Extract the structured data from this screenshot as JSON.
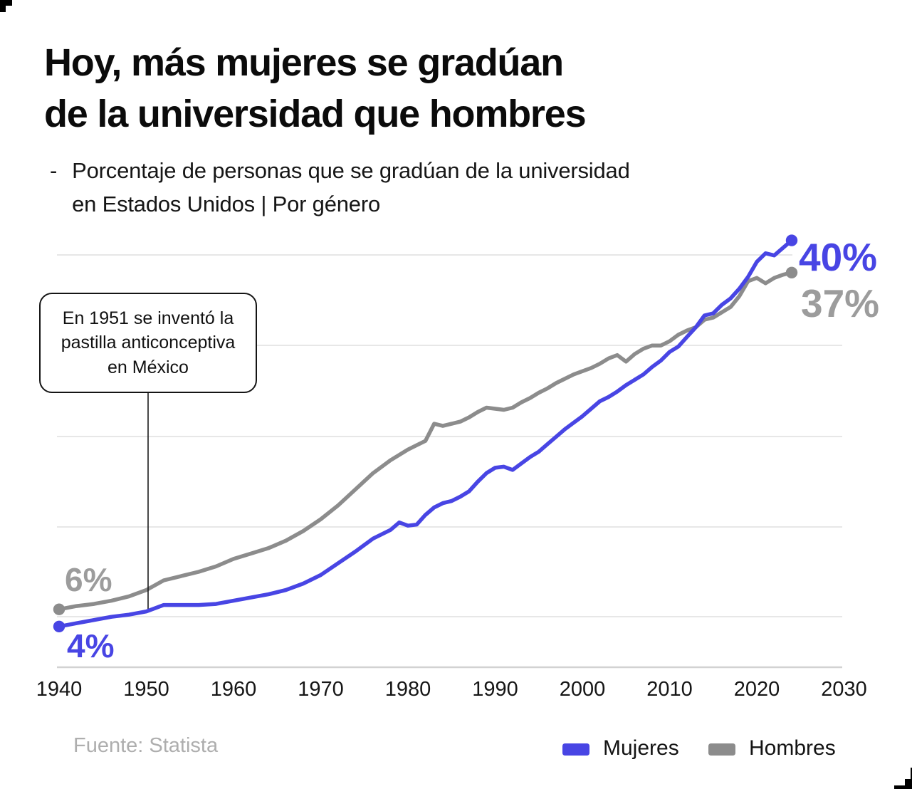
{
  "header": {
    "title_line1": "Hoy, más mujeres se gradúan",
    "title_line2": "de la universidad que hombres",
    "subtitle_dash": "-",
    "subtitle_line1": "Porcentaje de personas que se gradúan de la universidad",
    "subtitle_line2": "en Estados Unidos | Por género"
  },
  "annotation": {
    "line1": "En 1951 se inventó la",
    "line2": "pastilla anticonceptiva",
    "line3": "en México",
    "year": 1951
  },
  "value_labels": {
    "women_start": "4%",
    "men_start": "6%",
    "women_end": "40%",
    "men_end": "37%"
  },
  "footer": {
    "source": "Fuente: Statista",
    "legend": [
      {
        "label": "Mujeres",
        "color": "#4845e4"
      },
      {
        "label": "Hombres",
        "color": "#8c8c8c"
      }
    ]
  },
  "colors": {
    "women": "#4845e4",
    "men": "#8c8c8c",
    "men_label": "#9c9c9c",
    "grid": "#e7e7e7",
    "axis": "#d2d2d2",
    "annotation_line": "#1a1a1a",
    "source": "#aeaeae",
    "text": "#161616"
  },
  "chart_data": {
    "type": "line",
    "title": "Hoy, más mujeres se gradúan de la universidad que hombres",
    "subtitle": "Porcentaje de personas que se gradúan de la universidad en Estados Unidos | Por género",
    "x_ticks": [
      1940,
      1950,
      1960,
      1970,
      1980,
      1990,
      2000,
      2010,
      2020,
      2030
    ],
    "x_range": [
      1940,
      2030
    ],
    "y_range": [
      0,
      43
    ],
    "grid": "horizontal",
    "legend_position": "bottom-right",
    "annotation": {
      "text": "En 1951 se inventó la pastilla anticonceptiva en México",
      "x": 1951
    },
    "x": [
      1940,
      1942,
      1944,
      1946,
      1948,
      1950,
      1952,
      1954,
      1956,
      1958,
      1960,
      1962,
      1964,
      1966,
      1968,
      1970,
      1972,
      1974,
      1976,
      1978,
      1979,
      1980,
      1981,
      1982,
      1983,
      1984,
      1985,
      1986,
      1987,
      1988,
      1989,
      1990,
      1991,
      1992,
      1993,
      1994,
      1995,
      1996,
      1997,
      1998,
      1999,
      2000,
      2001,
      2002,
      2003,
      2004,
      2005,
      2006,
      2007,
      2008,
      2009,
      2010,
      2011,
      2012,
      2013,
      2014,
      2015,
      2016,
      2017,
      2018,
      2019,
      2020,
      2021,
      2022,
      2023,
      2024
    ],
    "series": [
      {
        "name": "Mujeres",
        "color": "#4845e4",
        "start_label": "4%",
        "end_label": "40%",
        "values": [
          4.0,
          4.3,
          4.6,
          4.9,
          5.1,
          5.4,
          6.0,
          6.0,
          6.0,
          6.1,
          6.4,
          6.7,
          7.0,
          7.4,
          8.0,
          8.8,
          9.9,
          11.0,
          12.2,
          13.0,
          13.7,
          13.4,
          13.5,
          14.4,
          15.1,
          15.5,
          15.7,
          16.1,
          16.6,
          17.5,
          18.3,
          18.8,
          18.9,
          18.6,
          19.2,
          19.8,
          20.3,
          21.0,
          21.7,
          22.4,
          23.0,
          23.6,
          24.3,
          25.0,
          25.4,
          25.9,
          26.5,
          27.0,
          27.5,
          28.2,
          28.8,
          29.6,
          30.1,
          31.0,
          31.9,
          33.0,
          33.2,
          34.0,
          34.6,
          35.5,
          36.6,
          38.0,
          38.8,
          38.6,
          39.3,
          40.0
        ]
      },
      {
        "name": "Hombres",
        "color": "#8c8c8c",
        "start_label": "6%",
        "end_label": "37%",
        "values": [
          5.6,
          5.9,
          6.1,
          6.4,
          6.8,
          7.4,
          8.3,
          8.7,
          9.1,
          9.6,
          10.3,
          10.8,
          11.3,
          12.0,
          12.9,
          14.0,
          15.3,
          16.8,
          18.3,
          19.5,
          20.0,
          20.5,
          20.9,
          21.3,
          22.9,
          22.7,
          22.9,
          23.1,
          23.5,
          24.0,
          24.4,
          24.3,
          24.2,
          24.4,
          24.9,
          25.3,
          25.8,
          26.2,
          26.7,
          27.1,
          27.5,
          27.8,
          28.1,
          28.5,
          29.0,
          29.3,
          28.7,
          29.4,
          29.9,
          30.2,
          30.2,
          30.6,
          31.2,
          31.6,
          31.9,
          32.6,
          32.8,
          33.3,
          33.8,
          34.8,
          36.2,
          36.5,
          36.0,
          36.5,
          36.8,
          37.0
        ]
      }
    ]
  }
}
